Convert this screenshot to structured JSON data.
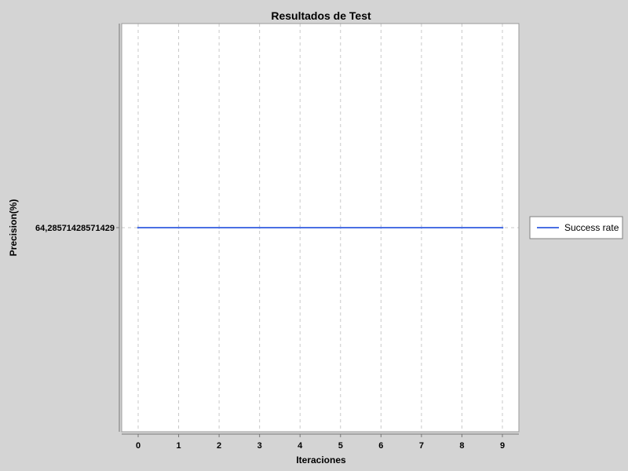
{
  "chart_data": {
    "type": "line",
    "title": "Resultados de Test",
    "xlabel": "Iteraciones",
    "ylabel": "Precision(%)",
    "x": [
      0,
      1,
      2,
      3,
      4,
      5,
      6,
      7,
      8,
      9
    ],
    "x_tick_labels": [
      "0",
      "1",
      "2",
      "3",
      "4",
      "5",
      "6",
      "7",
      "8",
      "9"
    ],
    "y_tick_labels": [
      "64,28571428571429"
    ],
    "series": [
      {
        "name": "Success rate",
        "color": "#4a6fe3",
        "values": [
          64.28571428571429,
          64.28571428571429,
          64.28571428571429,
          64.28571428571429,
          64.28571428571429,
          64.28571428571429,
          64.28571428571429,
          64.28571428571429,
          64.28571428571429,
          64.28571428571429
        ]
      }
    ],
    "grid": true,
    "legend_position": "right",
    "colors": {
      "background": "#d4d4d4",
      "plot_background": "#ffffff",
      "grid": "#c8c8c8",
      "series": "#4a6fe3"
    }
  }
}
